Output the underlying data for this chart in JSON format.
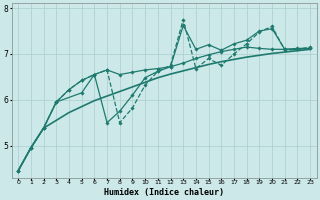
{
  "xlabel": "Humidex (Indice chaleur)",
  "background_color": "#cce8e8",
  "grid_color": "#aacece",
  "line_color": "#1e7a6e",
  "xlim": [
    -0.5,
    23.5
  ],
  "ylim": [
    4.3,
    8.1
  ],
  "yticks": [
    5,
    6,
    7,
    8
  ],
  "xticks": [
    0,
    1,
    2,
    3,
    4,
    5,
    6,
    7,
    8,
    9,
    10,
    11,
    12,
    13,
    14,
    15,
    16,
    17,
    18,
    19,
    20,
    21,
    22,
    23
  ],
  "series": [
    {
      "x": [
        0,
        1,
        2,
        3,
        4,
        5,
        6,
        7,
        8,
        9,
        10,
        11,
        12,
        13,
        14,
        15,
        16,
        17,
        18,
        19,
        20,
        21,
        22,
        23
      ],
      "y": [
        4.45,
        4.95,
        5.38,
        5.55,
        5.72,
        5.85,
        5.98,
        6.08,
        6.18,
        6.28,
        6.38,
        6.48,
        6.56,
        6.63,
        6.7,
        6.77,
        6.83,
        6.88,
        6.93,
        6.97,
        7.01,
        7.04,
        7.07,
        7.1
      ],
      "style": "-",
      "lw": 1.2,
      "marker": false
    },
    {
      "x": [
        0,
        1,
        2,
        3,
        5,
        6,
        7,
        8,
        9,
        10,
        11,
        12,
        13,
        14,
        15,
        16,
        17,
        18,
        19,
        20,
        21,
        22,
        23
      ],
      "y": [
        4.45,
        4.95,
        5.38,
        5.95,
        6.15,
        6.55,
        5.5,
        5.75,
        6.1,
        6.48,
        6.62,
        6.72,
        6.8,
        6.9,
        6.98,
        7.05,
        7.1,
        7.15,
        7.12,
        7.1,
        7.1,
        7.12,
        7.12
      ],
      "style": "-",
      "lw": 0.9,
      "marker": true
    },
    {
      "x": [
        0,
        1,
        2,
        3,
        4,
        5,
        6,
        7,
        8,
        9,
        10,
        11,
        12,
        13,
        14,
        15,
        16,
        17,
        18,
        19,
        20,
        21,
        22,
        23
      ],
      "y": [
        4.45,
        4.95,
        5.38,
        5.95,
        6.22,
        6.42,
        6.55,
        6.65,
        6.55,
        6.6,
        6.65,
        6.68,
        6.72,
        7.62,
        7.1,
        7.2,
        7.08,
        7.22,
        7.3,
        7.5,
        7.55,
        7.1,
        7.1,
        7.12
      ],
      "style": "-",
      "lw": 0.9,
      "marker": true
    },
    {
      "x": [
        0,
        1,
        2,
        3,
        4,
        5,
        6,
        7,
        8,
        9,
        10,
        11,
        12,
        13,
        14,
        15,
        16,
        17,
        18,
        19,
        20,
        21,
        22,
        23
      ],
      "y": [
        4.45,
        4.95,
        5.38,
        5.95,
        6.22,
        6.42,
        6.55,
        6.65,
        5.5,
        5.82,
        6.32,
        6.62,
        6.75,
        7.75,
        6.68,
        6.9,
        6.75,
        7.0,
        7.22,
        7.48,
        7.6,
        7.08,
        7.1,
        7.15
      ],
      "style": "--",
      "lw": 0.9,
      "marker": true
    }
  ]
}
